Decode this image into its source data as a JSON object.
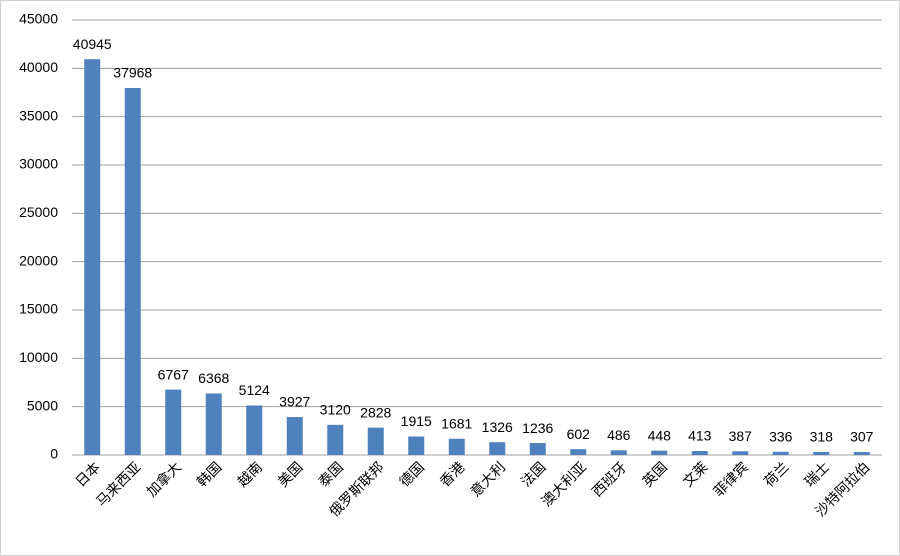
{
  "chart_data": {
    "type": "bar",
    "categories": [
      "日本",
      "马来西亚",
      "加拿大",
      "韩国",
      "越南",
      "美国",
      "泰国",
      "俄罗斯联邦",
      "德国",
      "香港",
      "意大利",
      "法国",
      "澳大利亚",
      "西班牙",
      "英国",
      "文莱",
      "菲律宾",
      "荷兰",
      "瑞士",
      "沙特阿拉伯"
    ],
    "values": [
      40945,
      37968,
      6767,
      6368,
      5124,
      3927,
      3120,
      2828,
      1915,
      1681,
      1326,
      1236,
      602,
      486,
      448,
      413,
      387,
      336,
      318,
      307
    ],
    "color": "#4f81bd",
    "ylim": [
      0,
      45000
    ],
    "yticks": [
      0,
      5000,
      10000,
      15000,
      20000,
      25000,
      30000,
      35000,
      40000,
      45000
    ],
    "grid": true
  }
}
